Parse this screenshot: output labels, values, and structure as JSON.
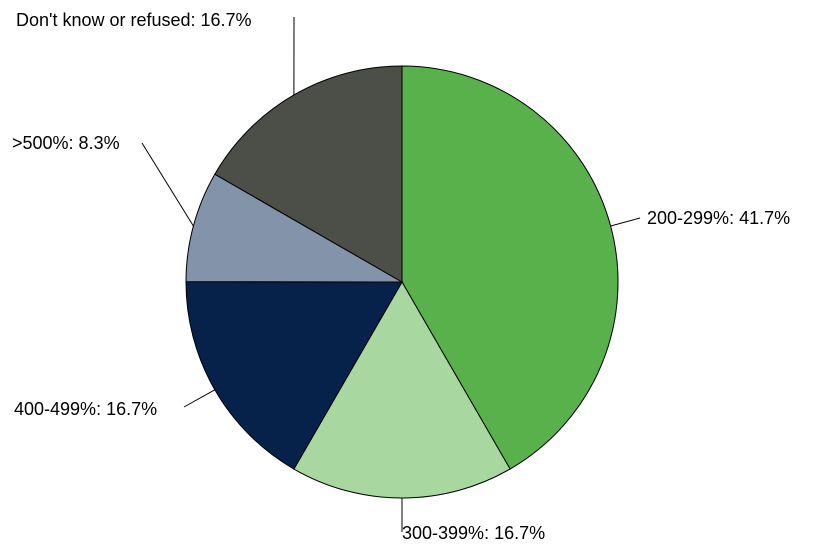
{
  "chart_data": {
    "type": "pie",
    "categories": [
      "200-299%",
      "300-399%",
      "400-499%",
      ">500%",
      "Don't know or refused"
    ],
    "values": [
      41.7,
      16.7,
      16.7,
      8.3,
      16.7
    ],
    "labels": [
      "200-299%: 41.7%",
      "300-399%: 16.7%",
      "400-499%: 16.7%",
      ">500%: 8.3%",
      "Don't know or refused: 16.7%"
    ],
    "colors": [
      "#58b14a",
      "#a8d8a0",
      "#06224a",
      "#8393aa",
      "#4c4e48"
    ],
    "start": "12 o'clock",
    "direction": "clockwise"
  }
}
